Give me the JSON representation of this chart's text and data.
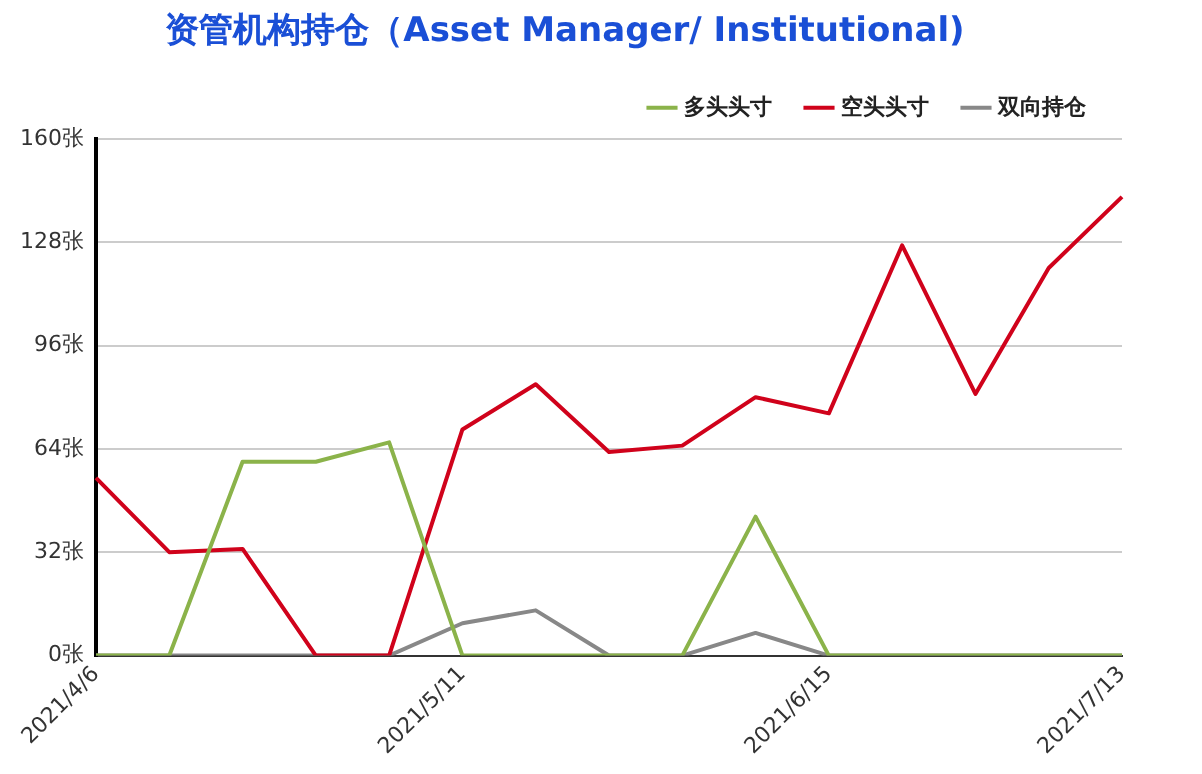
{
  "chart_data": {
    "type": "line",
    "title": "资管机构持仓（Asset Manager/ Institutional)",
    "categories": [
      "2021/4/6",
      null,
      null,
      null,
      null,
      "2021/5/11",
      null,
      null,
      null,
      null,
      "2021/6/15",
      null,
      null,
      null,
      "2021/7/13"
    ],
    "series": [
      {
        "name": "多头头寸",
        "color": "#8bb34a",
        "values": [
          0,
          0,
          60,
          60,
          66,
          0,
          0,
          0,
          0,
          43,
          0,
          0,
          0,
          0,
          0
        ]
      },
      {
        "name": "空头头寸",
        "color": "#d0021b",
        "values": [
          55,
          32,
          33,
          0,
          0,
          70,
          84,
          63,
          65,
          80,
          75,
          127,
          81,
          120,
          142
        ]
      },
      {
        "name": "双向持仓",
        "color": "#888888",
        "values": [
          0,
          0,
          0,
          0,
          0,
          10,
          14,
          0,
          0,
          7,
          0,
          0,
          0,
          0,
          0
        ]
      }
    ],
    "ylim": [
      0,
      160
    ],
    "yticks": [
      {
        "value": 0,
        "label": "0张"
      },
      {
        "value": 32,
        "label": "32张"
      },
      {
        "value": 64,
        "label": "64张"
      },
      {
        "value": 96,
        "label": "96张"
      },
      {
        "value": 128,
        "label": "128张"
      },
      {
        "value": 160,
        "label": "160张"
      }
    ],
    "grid": "y",
    "legend": "top right",
    "marker": "none",
    "line_style": "solid"
  }
}
